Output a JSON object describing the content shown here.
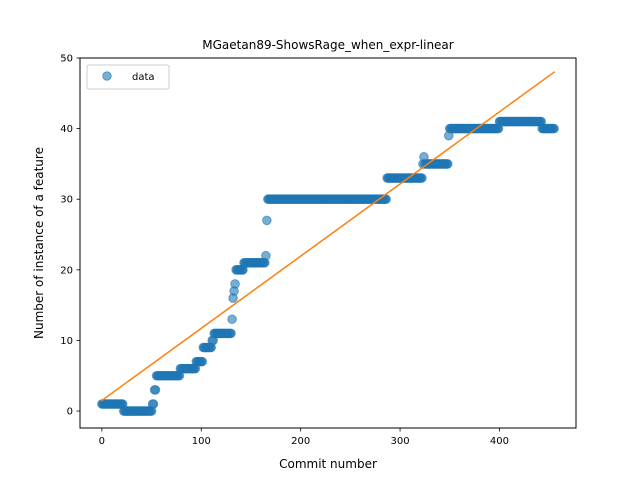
{
  "chart_data": {
    "type": "scatter",
    "title": "MGaetan89-ShowsRage_when_expr-linear",
    "xlabel": "Commit number",
    "ylabel": "Number of instance of a feature",
    "xlim": [
      -22,
      477
    ],
    "ylim": [
      -2.4,
      50
    ],
    "xticks": [
      0,
      100,
      200,
      300,
      400
    ],
    "yticks": [
      0,
      10,
      20,
      30,
      40,
      50
    ],
    "grid": false,
    "legend_position": "top-left",
    "colors": {
      "data": "#1f77b4",
      "fit": "#ff7f0e"
    },
    "series": [
      {
        "name": "data",
        "kind": "scatter",
        "segments": [
          {
            "x_start": 0,
            "x_end": 21,
            "y": 1
          },
          {
            "x_start": 22,
            "x_end": 50,
            "y": 0
          },
          {
            "x_start": 51,
            "x_end": 52,
            "y": 1
          },
          {
            "x_start": 53,
            "x_end": 54,
            "y": 3
          },
          {
            "x_start": 55,
            "x_end": 78,
            "y": 5
          },
          {
            "x_start": 79,
            "x_end": 94,
            "y": 6
          },
          {
            "x_start": 95,
            "x_end": 101,
            "y": 7
          },
          {
            "x_start": 102,
            "x_end": 110,
            "y": 9
          },
          {
            "x_start": 111,
            "x_end": 112,
            "y": 10
          },
          {
            "x_start": 113,
            "x_end": 130,
            "y": 11
          },
          {
            "x_start": 131,
            "x_end": 131,
            "y": 13
          },
          {
            "x_start": 132,
            "x_end": 132,
            "y": 16
          },
          {
            "x_start": 133,
            "x_end": 133,
            "y": 17
          },
          {
            "x_start": 134,
            "x_end": 134,
            "y": 18
          },
          {
            "x_start": 135,
            "x_end": 142,
            "y": 20
          },
          {
            "x_start": 143,
            "x_end": 164,
            "y": 21
          },
          {
            "x_start": 165,
            "x_end": 165,
            "y": 22
          },
          {
            "x_start": 166,
            "x_end": 166,
            "y": 27
          },
          {
            "x_start": 167,
            "x_end": 286,
            "y": 30
          },
          {
            "x_start": 287,
            "x_end": 322,
            "y": 33
          },
          {
            "x_start": 323,
            "x_end": 323,
            "y": 35
          },
          {
            "x_start": 324,
            "x_end": 324,
            "y": 36
          },
          {
            "x_start": 325,
            "x_end": 348,
            "y": 35
          },
          {
            "x_start": 349,
            "x_end": 349,
            "y": 39
          },
          {
            "x_start": 350,
            "x_end": 399,
            "y": 40
          },
          {
            "x_start": 400,
            "x_end": 442,
            "y": 41
          },
          {
            "x_start": 443,
            "x_end": 455,
            "y": 40
          }
        ]
      },
      {
        "name": "",
        "kind": "line",
        "x": [
          0,
          455
        ],
        "y": [
          1.5,
          48.0
        ]
      }
    ]
  }
}
